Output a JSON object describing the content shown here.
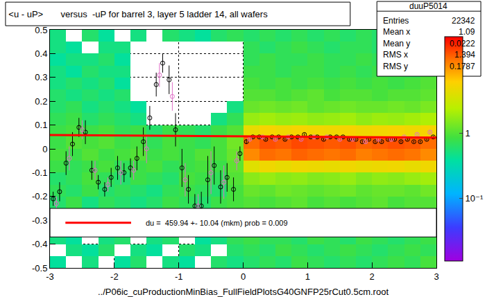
{
  "chart_data": {
    "type": "heatmap",
    "title": "<u - uP>       versus  -uP for barrel 3, layer 5 ladder 14, all wafers",
    "x_label": "../P06ic_cuProductionMinBias_FullFieldPlotsG40GNFP25rCut0.5cm.root",
    "xlim": [
      -3,
      3
    ],
    "xticks": [
      -3,
      -2,
      -1,
      0,
      1,
      2,
      3
    ],
    "ylim": [
      -0.5,
      0.5
    ],
    "yticks": [
      -0.5,
      -0.4,
      -0.3,
      -0.2,
      -0.1,
      0,
      0.1,
      0.2,
      0.3,
      0.4,
      0.5
    ],
    "grid": true,
    "log": "z",
    "cells": {
      "x": [
        -2.875,
        -2.625,
        -2.375,
        -2.125,
        -1.875,
        -1.625,
        -1.375,
        -1.125,
        -0.875,
        -0.625,
        -0.375,
        -0.125,
        0.125,
        0.375,
        0.625,
        0.875,
        1.125,
        1.375,
        1.625,
        1.875,
        2.125,
        2.375,
        2.625,
        2.875
      ],
      "y": [
        -0.475,
        -0.425,
        -0.375,
        -0.325,
        -0.275,
        -0.225,
        -0.175,
        -0.125,
        -0.075,
        -0.025,
        0.025,
        0.075,
        0.125,
        0.175,
        0.225,
        0.275,
        0.325,
        0.375,
        0.425,
        0.475
      ],
      "z": [
        [
          0.4,
          null,
          0.5,
          null,
          0.4,
          0.6,
          null,
          0.5,
          0.4,
          null,
          0.6,
          0.5,
          0.6,
          0.7,
          0.6,
          0.8,
          0.7,
          0.6,
          0.7,
          0.6,
          0.7,
          0.8,
          0.7,
          0.9
        ],
        [
          null,
          0.5,
          0.4,
          0.6,
          null,
          0.5,
          0.4,
          null,
          0.6,
          0.5,
          null,
          0.6,
          0.7,
          0.6,
          0.8,
          0.7,
          0.6,
          0.7,
          0.8,
          0.7,
          0.6,
          0.7,
          0.8,
          0.7
        ],
        [
          0.5,
          0.4,
          null,
          0.5,
          0.6,
          null,
          0.5,
          0.6,
          null,
          0.4,
          0.5,
          0.7,
          0.8,
          0.7,
          0.7,
          0.6,
          0.8,
          0.7,
          0.6,
          0.8,
          0.7,
          0.6,
          0.7,
          0.8
        ],
        [
          0.3,
          0.5,
          null,
          0.4,
          0.5,
          null,
          0.4,
          0.5,
          null,
          0.5,
          0.4,
          0.6,
          0.8,
          0.8,
          0.7,
          0.9,
          0.8,
          0.7,
          0.8,
          0.7,
          0.8,
          0.9,
          0.8,
          0.8
        ],
        [
          0.5,
          0.4,
          0.6,
          null,
          0.5,
          0.4,
          null,
          0.6,
          0.5,
          0.4,
          0.6,
          0.7,
          0.9,
          0.8,
          0.9,
          0.8,
          0.9,
          0.8,
          0.9,
          0.8,
          0.8,
          0.9,
          0.8,
          0.9
        ],
        [
          0.6,
          0.8,
          0.5,
          0.7,
          0.6,
          0.5,
          0.6,
          0.8,
          0.7,
          0.6,
          0.8,
          0.9,
          1,
          0.9,
          1,
          1.1,
          0.9,
          1,
          0.9,
          1,
          1.1,
          0.9,
          1,
          1
        ],
        [
          0.7,
          0.6,
          0.8,
          0.6,
          0.7,
          0.6,
          0.5,
          0.7,
          0.8,
          0.7,
          0.6,
          0.9,
          1.2,
          1.1,
          1.3,
          1.2,
          1.1,
          1.2,
          1.3,
          1.1,
          1.2,
          1.2,
          1.1,
          1.3
        ],
        [
          0.6,
          0.7,
          0.9,
          0.7,
          0.6,
          0.8,
          0.7,
          0.6,
          0.9,
          0.8,
          0.7,
          1,
          1.6,
          1.8,
          1.6,
          1.7,
          1.5,
          1.6,
          1.8,
          1.5,
          1.7,
          1.6,
          1.8,
          2
        ],
        [
          0.8,
          0.7,
          0.8,
          0.9,
          0.7,
          0.8,
          0.9,
          0.7,
          0.8,
          0.9,
          0.8,
          1.1,
          4,
          5,
          4.5,
          5,
          4.8,
          4.5,
          5,
          4.6,
          4.8,
          5,
          4.5,
          5
        ],
        [
          0.9,
          0.8,
          1,
          0.8,
          0.9,
          1,
          0.8,
          0.9,
          0.8,
          1,
          0.9,
          1.2,
          11,
          14,
          13,
          15,
          14,
          13,
          14,
          12,
          13,
          14,
          13,
          11
        ],
        [
          0.8,
          1,
          0.9,
          1,
          0.8,
          0.9,
          0.7,
          0.9,
          0.8,
          0.7,
          0.9,
          1.3,
          14,
          17,
          16,
          18,
          17,
          16,
          17,
          15,
          16,
          17,
          16,
          14
        ],
        [
          0.8,
          0.9,
          0.8,
          0.9,
          0.7,
          0.8,
          0.6,
          0.8,
          0.7,
          0.6,
          0.8,
          1,
          4.5,
          5.5,
          5,
          5.5,
          5.2,
          5,
          5.5,
          5,
          5.2,
          5.5,
          5,
          5.5
        ],
        [
          0.7,
          0.8,
          0.6,
          0.7,
          0.6,
          0.5,
          null,
          null,
          null,
          null,
          0.5,
          0.7,
          1.8,
          2,
          1.8,
          1.9,
          1.7,
          1.8,
          2,
          1.7,
          1.9,
          1.8,
          2,
          2.2
        ],
        [
          0.6,
          0.7,
          0.5,
          0.6,
          0.5,
          0.4,
          null,
          null,
          null,
          null,
          null,
          0.5,
          1.2,
          1.3,
          1.2,
          1.3,
          1.1,
          1.2,
          1.3,
          1.2,
          1.2,
          1.3,
          1.2,
          1.4
        ],
        [
          0.6,
          0.5,
          0.6,
          0.5,
          0.6,
          null,
          null,
          null,
          null,
          null,
          null,
          null,
          1,
          1,
          0.9,
          1,
          1.1,
          0.9,
          1,
          1,
          0.9,
          1,
          1,
          1.1
        ],
        [
          0.5,
          0.6,
          0.5,
          0.6,
          0.4,
          null,
          null,
          null,
          null,
          null,
          null,
          null,
          0.9,
          0.8,
          0.9,
          0.8,
          0.9,
          0.8,
          0.9,
          0.8,
          0.9,
          0.8,
          0.9,
          1
        ],
        [
          0.5,
          0.4,
          0.6,
          0.5,
          0.5,
          null,
          null,
          null,
          null,
          null,
          null,
          null,
          0.8,
          0.8,
          0.7,
          0.8,
          0.8,
          0.7,
          0.8,
          0.7,
          0.8,
          0.8,
          0.7,
          0.9
        ],
        [
          0.4,
          0.5,
          0.5,
          0.6,
          0.4,
          null,
          null,
          null,
          null,
          null,
          null,
          null,
          0.7,
          0.8,
          0.7,
          0.7,
          0.8,
          0.7,
          0.7,
          0.8,
          0.7,
          0.7,
          0.8,
          0.9
        ],
        [
          0.5,
          0.4,
          null,
          0.5,
          0.5,
          null,
          null,
          null,
          null,
          null,
          null,
          null,
          0.7,
          0.6,
          0.7,
          0.8,
          0.7,
          0.6,
          0.7,
          0.7,
          0.6,
          0.7,
          0.8,
          0.9
        ],
        [
          0.5,
          null,
          0.6,
          0.4,
          null,
          0.5,
          null,
          0.6,
          0.5,
          0.4,
          0.6,
          0.7,
          0.6,
          0.7,
          0.6,
          0.7,
          0.6,
          0.7,
          0.6,
          0.7,
          0.6,
          0.7,
          0.7,
          0.8
        ]
      ],
      "zlim": [
        0.011,
        30
      ],
      "zticks": [
        {
          "value": 0.1,
          "label": "10⁻¹"
        },
        1
      ]
    },
    "series": [
      {
        "type": "scatter",
        "marker": "circle-open",
        "color": "#000000",
        "x": [
          -2.95,
          -2.85,
          -2.75,
          -2.65,
          -2.55,
          -2.45,
          -2.35,
          -2.25,
          -2.15,
          -2.05,
          -1.95,
          -1.85,
          -1.75,
          -1.65,
          -1.55,
          -1.45,
          -1.35,
          -1.25,
          -1.15,
          -1.05,
          -0.95,
          -0.85,
          -0.75,
          -0.65,
          -0.55,
          -0.45,
          -0.35,
          -0.25,
          -0.15,
          -0.05,
          0.05,
          0.15,
          0.25,
          0.35,
          0.45,
          0.55,
          0.65,
          0.75,
          0.85,
          0.95,
          1.05,
          1.15,
          1.25,
          1.35,
          1.45,
          1.55,
          1.65,
          1.75,
          1.85,
          1.95,
          2.05,
          2.15,
          2.25,
          2.35,
          2.45,
          2.55,
          2.65,
          2.75,
          2.85,
          2.95
        ],
        "values": [
          -0.21,
          -0.18,
          -0.06,
          0.02,
          0.09,
          0.07,
          -0.09,
          -0.14,
          -0.17,
          -0.12,
          -0.08,
          -0.1,
          -0.08,
          -0.04,
          0.03,
          0.13,
          0.27,
          0.36,
          0.29,
          0.08,
          -0.08,
          -0.17,
          -0.24,
          -0.24,
          -0.13,
          -0.07,
          -0.16,
          -0.12,
          -0.17,
          -0.02,
          0.03,
          0.05,
          0.05,
          0.04,
          0.05,
          0.05,
          0.04,
          0.05,
          0.05,
          0.06,
          0.05,
          0.05,
          0.04,
          0.05,
          0.05,
          0.05,
          0.04,
          0.04,
          0.03,
          0.04,
          0.03,
          0.03,
          0.04,
          0.04,
          0.03,
          0.04,
          0.03,
          0.03,
          0.04,
          0.05
        ],
        "errors": [
          0.03,
          0.04,
          0.05,
          0.05,
          0.04,
          0.05,
          0.04,
          0.03,
          0.03,
          0.04,
          0.05,
          0.04,
          0.04,
          0.05,
          0.06,
          0.05,
          0.05,
          0.04,
          0.06,
          0.07,
          0.08,
          0.06,
          0.05,
          0.06,
          0.1,
          0.08,
          0.07,
          0.06,
          0.05,
          0.03,
          0.01,
          0.005,
          0.005,
          0.005,
          0.005,
          0.005,
          0.005,
          0.005,
          0.005,
          0.005,
          0.005,
          0.005,
          0.005,
          0.005,
          0.005,
          0.005,
          0.005,
          0.005,
          0.005,
          0.005,
          0.005,
          0.005,
          0.005,
          0.005,
          0.005,
          0.005,
          0.005,
          0.005,
          0.005,
          0.005
        ]
      },
      {
        "type": "scatter",
        "marker": "circle-open",
        "color": "#e070c8",
        "x": [
          -2.9,
          -2.7,
          -2.5,
          -2.3,
          -2.1,
          -1.9,
          -1.7,
          -1.5,
          -1.3,
          -1.1,
          -0.9,
          -0.7,
          -0.5,
          -0.3,
          -0.1,
          0.1,
          0.3,
          0.5,
          0.7,
          0.9,
          1.1,
          1.3,
          1.5,
          1.7,
          1.9,
          2.1,
          2.3,
          2.5,
          2.7,
          2.9
        ],
        "values": [
          -0.23,
          -0.04,
          0.08,
          -0.09,
          -0.15,
          -0.1,
          -0.09,
          0,
          0.31,
          0.22,
          -0.13,
          -0.24,
          -0.1,
          -0.14,
          -0.05,
          0.04,
          0.05,
          0.04,
          0.05,
          0.04,
          0.05,
          0.05,
          0.04,
          0.04,
          0.03,
          0.04,
          0.04,
          0.05,
          0.06,
          0.07
        ],
        "errors": [
          0.03,
          0.05,
          0.04,
          0.04,
          0.03,
          0.05,
          0.04,
          0.06,
          0.05,
          0.06,
          0.07,
          0.05,
          0.09,
          0.07,
          0.04,
          0.008,
          0.005,
          0.005,
          0.005,
          0.005,
          0.005,
          0.005,
          0.005,
          0.005,
          0.005,
          0.005,
          0.005,
          0.005,
          0.005,
          0.006
        ]
      },
      {
        "type": "line",
        "color": "#ff0000",
        "line_style": "solid",
        "x": [
          -3,
          3
        ],
        "values": [
          0.058,
          0.047
        ],
        "label": "du =  459.94 +- 10.04 (mkm) prob = 0.009"
      }
    ],
    "stats": {
      "name": "duuP5014",
      "rows": [
        [
          "Entries",
          22342
        ],
        [
          "Mean x",
          1.09
        ],
        [
          "Mean y",
          0.0222
        ],
        [
          "RMS x",
          1.394
        ],
        [
          "RMS y",
          0.1787
        ]
      ]
    }
  }
}
